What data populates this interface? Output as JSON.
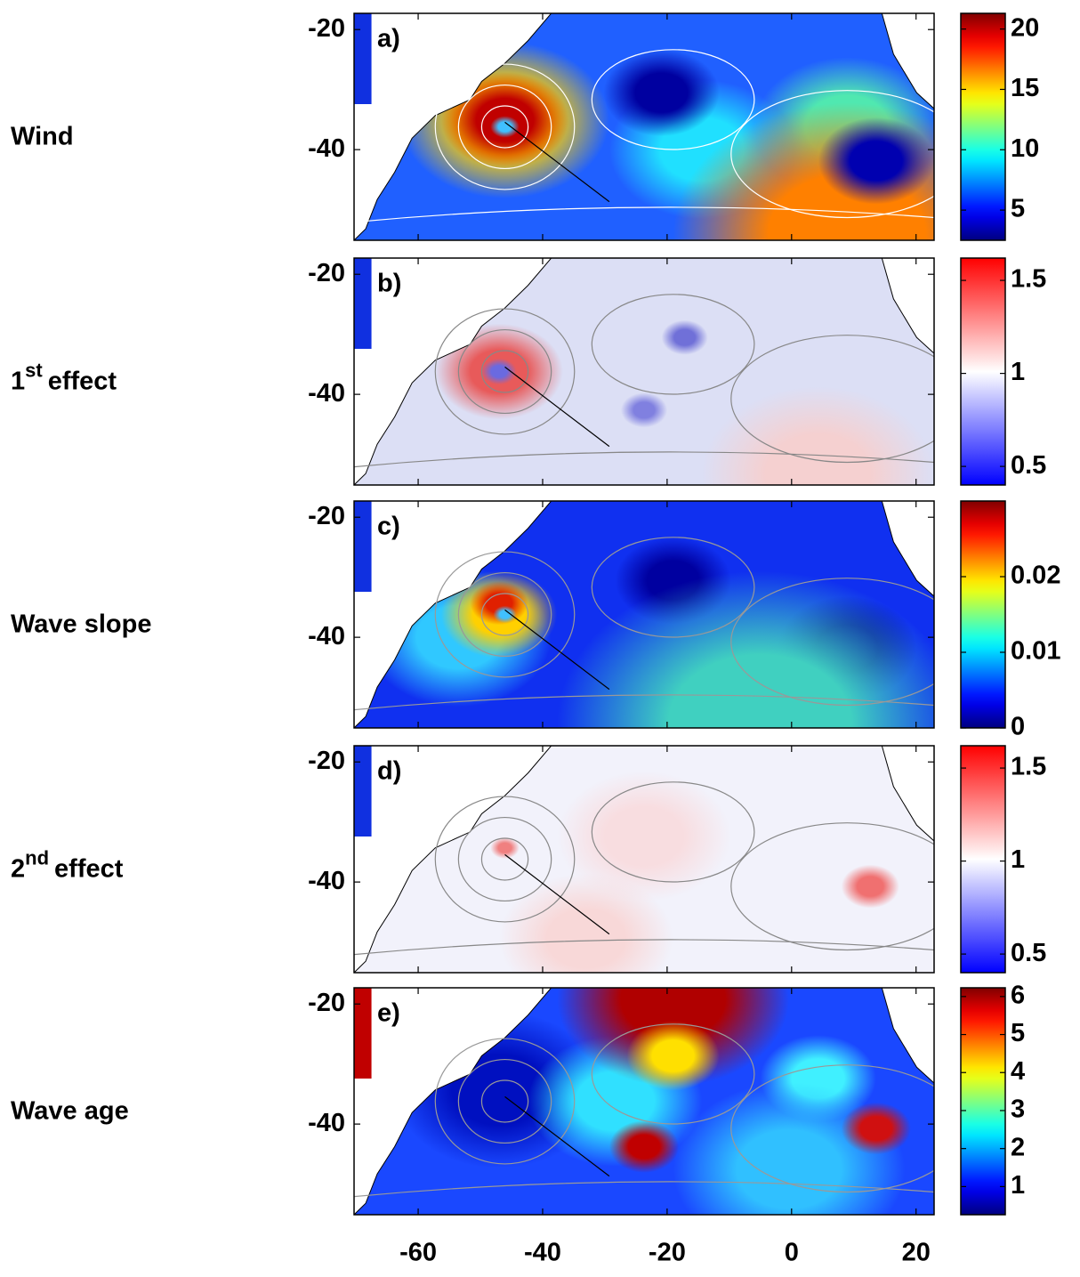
{
  "chart_data": [
    {
      "type": "map",
      "row_label": {
        "text": "Wind"
      },
      "panel_label": "a)",
      "xlim": [
        -70.3,
        22.9
      ],
      "ylim": [
        -55.1,
        -17.3
      ],
      "yticks": [
        -20,
        -40
      ],
      "colorbar": {
        "colormap": "jet",
        "lim": [
          2.5,
          21.3
        ],
        "ticks": [
          5,
          10,
          15,
          20
        ]
      }
    },
    {
      "type": "map",
      "row_label": {
        "text": "1",
        "sup": "st",
        "rest": "effect"
      },
      "panel_label": "b)",
      "xlim": [
        -70.3,
        22.9
      ],
      "ylim": [
        -55.1,
        -17.3
      ],
      "yticks": [
        -20,
        -40
      ],
      "colorbar": {
        "colormap": "bwr",
        "lim": [
          0.4,
          1.62
        ],
        "ticks": [
          0.5,
          1,
          1.5
        ]
      }
    },
    {
      "type": "map",
      "row_label": {
        "text": "Wave slope"
      },
      "panel_label": "c)",
      "xlim": [
        -70.3,
        22.9
      ],
      "ylim": [
        -55.1,
        -17.3
      ],
      "yticks": [
        -20,
        -40
      ],
      "colorbar": {
        "colormap": "jet",
        "lim": [
          0,
          0.03
        ],
        "ticks": [
          0,
          0.01,
          0.02
        ]
      }
    },
    {
      "type": "map",
      "row_label": {
        "text": "2",
        "sup": "nd",
        "rest": "effect"
      },
      "panel_label": "d)",
      "xlim": [
        -70.3,
        22.9
      ],
      "ylim": [
        -55.1,
        -17.3
      ],
      "yticks": [
        -20,
        -40
      ],
      "colorbar": {
        "colormap": "bwr",
        "lim": [
          0.4,
          1.62
        ],
        "ticks": [
          0.5,
          1,
          1.5
        ]
      }
    },
    {
      "type": "map",
      "row_label": {
        "text": "Wave age"
      },
      "panel_label": "e)",
      "xlim": [
        -70.3,
        22.9
      ],
      "ylim": [
        -55.1,
        -17.3
      ],
      "yticks": [
        -20,
        -40
      ],
      "xticks": [
        -60,
        -40,
        -20,
        0,
        20
      ],
      "colorbar": {
        "colormap": "jet",
        "lim": [
          0.26,
          6.23
        ],
        "ticks": [
          1,
          2,
          3,
          4,
          5,
          6
        ]
      }
    }
  ]
}
